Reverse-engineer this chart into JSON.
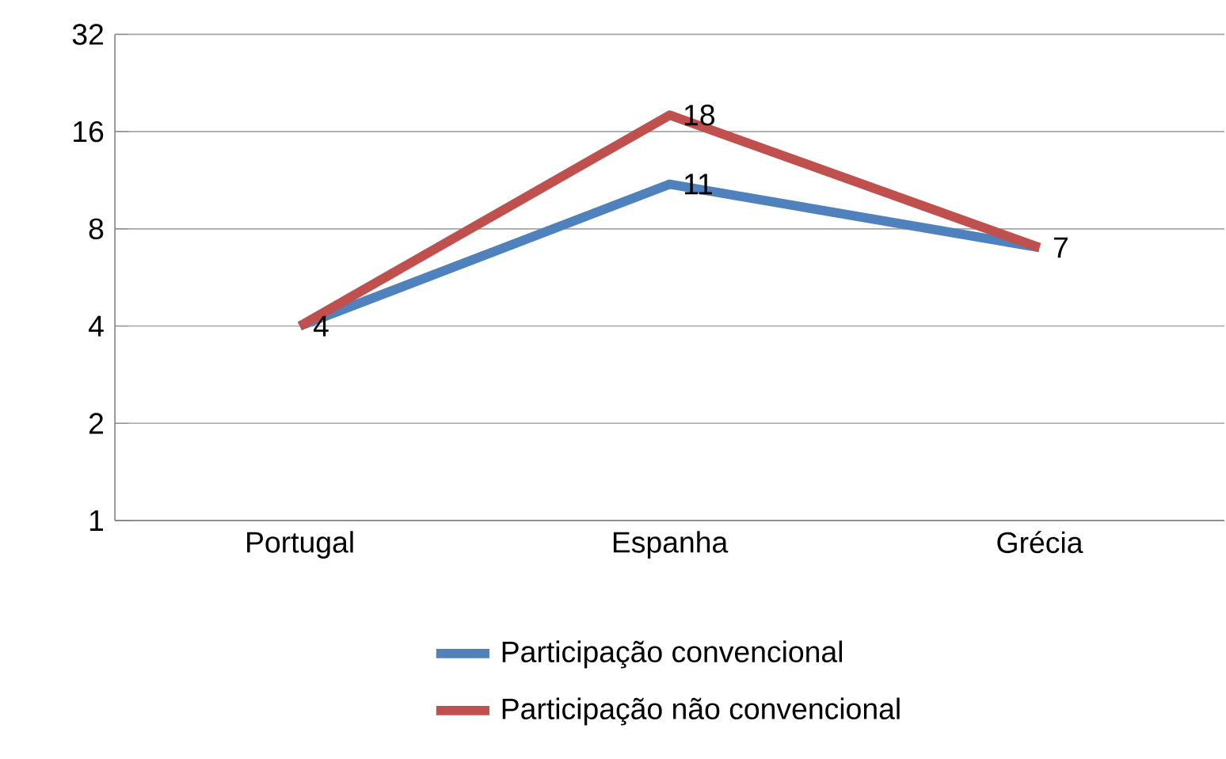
{
  "chart_data": {
    "type": "line",
    "categories": [
      "Portugal",
      "Espanha",
      "Grécia"
    ],
    "series": [
      {
        "name": "Participação convencional",
        "color": "#4f81bd",
        "values": [
          4,
          11,
          7
        ],
        "value_labels": [
          "4",
          "11",
          "7"
        ]
      },
      {
        "name": "Participação não convencional",
        "color": "#c0504d",
        "values": [
          4,
          18,
          7
        ],
        "value_labels": [
          null,
          "18",
          null
        ]
      }
    ],
    "log": "y",
    "ylim": [
      1,
      32
    ],
    "yticks": [
      1,
      2,
      4,
      8,
      16,
      32
    ],
    "grid": "y",
    "legend": "bottom",
    "marker": "none",
    "line_style": "solid"
  }
}
